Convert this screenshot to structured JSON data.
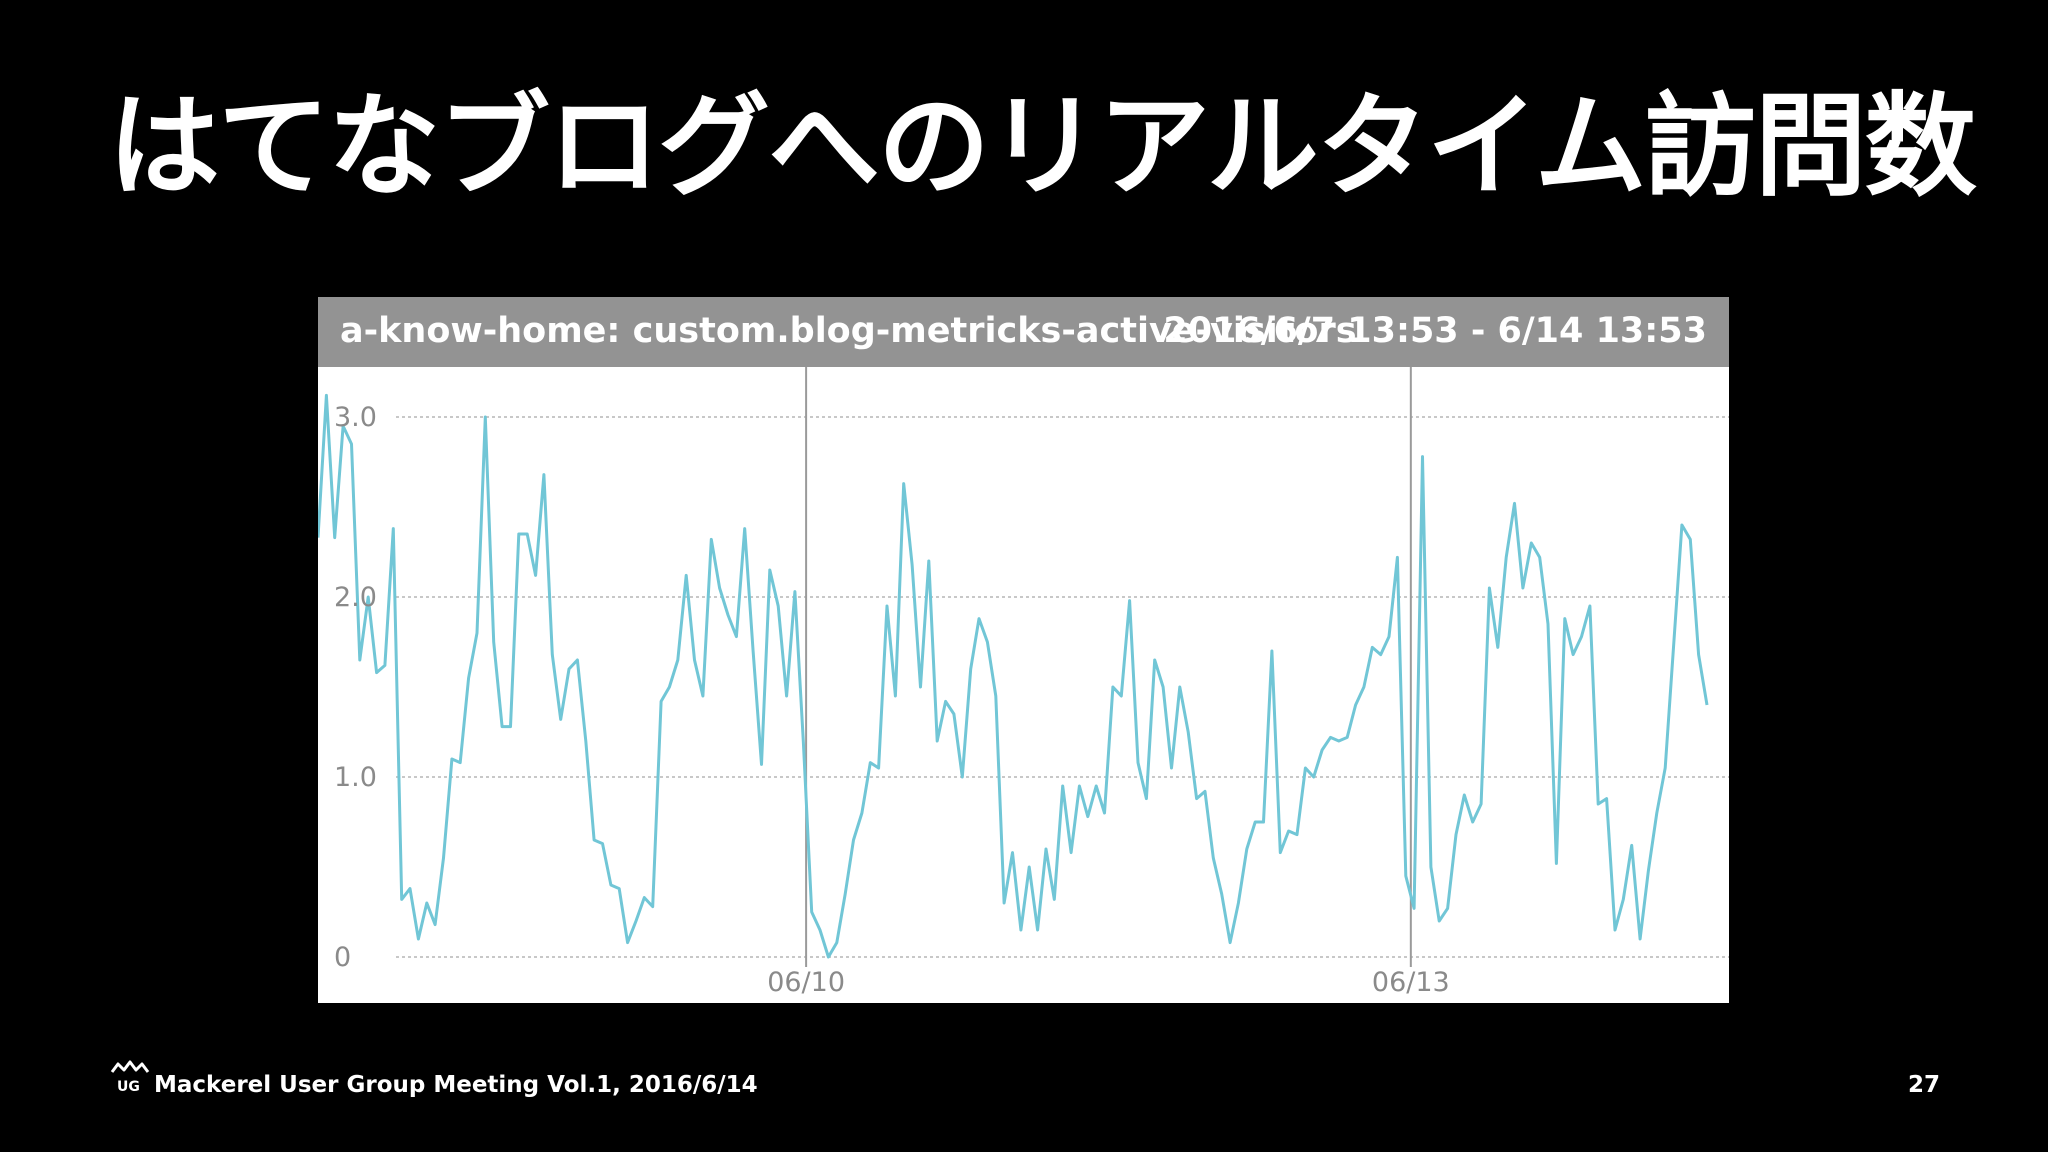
{
  "slide": {
    "title": "はてなブログへのリアルタイム訪問数",
    "footer_logo_text": "UG",
    "footer_text": "Mackerel User Group Meeting Vol.1, 2016/6/14",
    "page_number": "27"
  },
  "graph": {
    "header_metric": "a-know-home: custom.blog-metricks-active-visitors",
    "header_range": "2016/6/7 13:53 - 6/14 13:53"
  },
  "colors": {
    "background": "#000000",
    "header_bg": "#939393",
    "line": "#71c6d6",
    "grid": "#b5b5b5",
    "divider": "#9a9a9a"
  },
  "chart_data": {
    "type": "line",
    "title": "",
    "xlabel": "",
    "ylabel": "",
    "grid": true,
    "legend": "none",
    "x_range": [
      "2016/6/7 13:53",
      "2016/6/14 13:53"
    ],
    "x_ticks": [
      {
        "label": "06/10",
        "at": "2016/6/10 00:00"
      },
      {
        "label": "06/13",
        "at": "2016/6/13 00:00"
      }
    ],
    "ylim": [
      0,
      3.0
    ],
    "y_ticks": [
      {
        "label": "0",
        "value": 0
      },
      {
        "label": "1.0",
        "value": 1.0
      },
      {
        "label": "2.0",
        "value": 2.0
      },
      {
        "label": "3.0",
        "value": 3.0
      }
    ],
    "series": [
      {
        "values": [
          2.33,
          3.12,
          2.33,
          2.95,
          2.85,
          1.65,
          2.0,
          1.58,
          1.62,
          2.38,
          0.32,
          0.38,
          0.1,
          0.3,
          0.18,
          0.55,
          1.1,
          1.08,
          1.55,
          1.8,
          3.0,
          1.75,
          1.28,
          1.28,
          2.35,
          2.35,
          2.12,
          2.68,
          1.68,
          1.32,
          1.6,
          1.65,
          1.2,
          0.65,
          0.63,
          0.4,
          0.38,
          0.08,
          0.2,
          0.33,
          0.28,
          1.42,
          1.5,
          1.65,
          2.12,
          1.65,
          1.45,
          2.32,
          2.05,
          1.9,
          1.78,
          2.38,
          1.7,
          1.07,
          2.15,
          1.95,
          1.45,
          2.03,
          1.2,
          0.25,
          0.15,
          0.0,
          0.08,
          0.35,
          0.65,
          0.8,
          1.08,
          1.05,
          1.95,
          1.45,
          2.63,
          2.18,
          1.5,
          2.2,
          1.2,
          1.42,
          1.35,
          1.0,
          1.6,
          1.88,
          1.75,
          1.45,
          0.3,
          0.58,
          0.15,
          0.5,
          0.15,
          0.6,
          0.32,
          0.95,
          0.58,
          0.95,
          0.78,
          0.95,
          0.8,
          1.5,
          1.45,
          1.98,
          1.08,
          0.88,
          1.65,
          1.5,
          1.05,
          1.5,
          1.25,
          0.88,
          0.92,
          0.55,
          0.35,
          0.08,
          0.3,
          0.6,
          0.75,
          0.75,
          1.7,
          0.58,
          0.7,
          0.68,
          1.05,
          1.0,
          1.15,
          1.22,
          1.2,
          1.22,
          1.4,
          1.5,
          1.72,
          1.68,
          1.78,
          2.22,
          0.45,
          0.27,
          2.78,
          0.5,
          0.2,
          0.27,
          0.68,
          0.9,
          0.75,
          0.85,
          2.05,
          1.72,
          2.22,
          2.52,
          2.05,
          2.3,
          2.22,
          1.85,
          0.52,
          1.88,
          1.68,
          1.78,
          1.95,
          0.85,
          0.88,
          0.15,
          0.32,
          0.62,
          0.1,
          0.48,
          0.8,
          1.05,
          1.72,
          2.4,
          2.32,
          1.68,
          1.4
        ]
      }
    ]
  }
}
